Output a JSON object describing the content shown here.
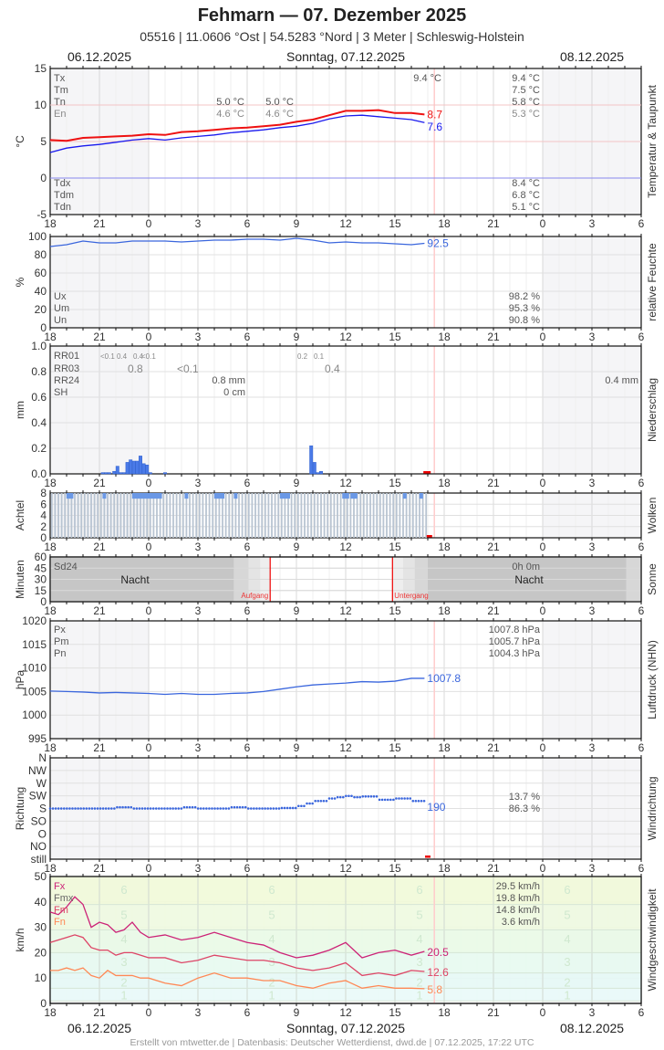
{
  "header": {
    "title": "Fehmarn  —  07. Dezember 2025",
    "subtitle": "05516  |  11.0606 °Ost  |  54.5283 °Nord  |  3 Meter  |  Schleswig-Holstein",
    "date_left": "06.12.2025",
    "date_center": "Sonntag, 07.12.2025",
    "date_right": "08.12.2025"
  },
  "footer": {
    "date_left": "06.12.2025",
    "date_center": "Sonntag, 07.12.2025",
    "date_right": "08.12.2025",
    "credit": "Erstellt von mtwetter.de | Datenbasis: Deutscher Wetterdienst, dwd.de | 07.12.2025, 17:22 UTC"
  },
  "x_axis_ticks": [
    "18",
    "21",
    "0",
    "3",
    "6",
    "9",
    "12",
    "15",
    "18",
    "21",
    "0",
    "3",
    "6"
  ],
  "chart_data": [
    {
      "type": "line",
      "title": "Temperatur & Taupunkt",
      "ylabel": "°C",
      "ylim": [
        -5,
        15
      ],
      "yticks": [
        "15",
        "10",
        "5",
        "0",
        "-5"
      ],
      "x_hours_from_18": [
        0,
        1,
        2,
        3,
        4,
        5,
        6,
        7,
        8,
        9,
        10,
        11,
        12,
        13,
        14,
        15,
        16,
        17,
        18,
        19,
        20,
        21,
        22,
        22.8
      ],
      "series": [
        {
          "name": "Temperatur",
          "color": "#ee1111",
          "values": [
            5.2,
            5.1,
            5.5,
            5.6,
            5.7,
            5.8,
            6.0,
            5.9,
            6.3,
            6.4,
            6.6,
            6.8,
            6.9,
            7.1,
            7.3,
            7.7,
            8.0,
            8.6,
            9.2,
            9.2,
            9.3,
            8.9,
            8.9,
            8.7
          ],
          "last_label": "8.7"
        },
        {
          "name": "Taupunkt",
          "color": "#1a1aee",
          "values": [
            3.5,
            4.1,
            4.4,
            4.6,
            4.9,
            5.2,
            5.4,
            5.2,
            5.5,
            5.7,
            5.9,
            6.2,
            6.4,
            6.6,
            6.9,
            7.1,
            7.5,
            8.1,
            8.5,
            8.6,
            8.4,
            8.2,
            8.0,
            7.6
          ],
          "last_label": "7.6"
        }
      ],
      "stats_left": [
        {
          "label": "Tx",
          "value": ""
        },
        {
          "label": "Tm",
          "value": ""
        },
        {
          "label": "Tn",
          "value": ""
        },
        {
          "label": "En",
          "value": ""
        }
      ],
      "annotations": [
        {
          "text": "5.0 °C",
          "row": "Tn",
          "x_hour": 12
        },
        {
          "text": "5.0 °C",
          "row": "Tn",
          "x_hour": 15
        },
        {
          "text": "4.6 °C",
          "row": "En",
          "x_hour": 12
        },
        {
          "text": "4.6 °C",
          "row": "En",
          "x_hour": 15
        },
        {
          "text": "9.4 °C",
          "row": "Tx",
          "x_hour": 24
        }
      ],
      "stats_right": {
        "Tx": "9.4 °C",
        "Tm": "7.5 °C",
        "Tn": "5.8 °C",
        "En": "5.3 °C"
      },
      "dew_stats": {
        "Tdx": "8.4 °C",
        "Tdm": "6.8 °C",
        "Tdn": "5.1 °C"
      }
    },
    {
      "type": "line",
      "title": "relative Feuchte",
      "ylabel": "%",
      "ylim": [
        0,
        100
      ],
      "yticks": [
        "100",
        "80",
        "60",
        "40",
        "20",
        "0"
      ],
      "x_hours_from_18": [
        0,
        1,
        2,
        3,
        4,
        5,
        6,
        7,
        8,
        9,
        10,
        11,
        12,
        13,
        14,
        15,
        16,
        17,
        18,
        19,
        20,
        21,
        22,
        22.8
      ],
      "series": [
        {
          "name": "Relative Feuchte",
          "color": "#3a66dd",
          "values": [
            89,
            91,
            95,
            93,
            93,
            95,
            95,
            95,
            94,
            95,
            96,
            96,
            97,
            97,
            96,
            98,
            96,
            93,
            94,
            93,
            93,
            92,
            91,
            92.5
          ],
          "last_label": "92.5"
        }
      ],
      "stats": {
        "Ux": "98.2 %",
        "Um": "95.3 %",
        "Un": "90.8 %"
      }
    },
    {
      "type": "bar",
      "title": "Niederschlag",
      "ylabel": "mm",
      "ylim": [
        0,
        1.0
      ],
      "yticks": [
        "1.0",
        "0.8",
        "0.6",
        "0.4",
        "0.2",
        "0.0"
      ],
      "bars": [
        {
          "x_hour": 3.2,
          "value": 0.01
        },
        {
          "x_hour": 3.4,
          "value": 0.01
        },
        {
          "x_hour": 3.6,
          "value": 0.01
        },
        {
          "x_hour": 3.9,
          "value": 0.02
        },
        {
          "x_hour": 4.1,
          "value": 0.06
        },
        {
          "x_hour": 4.3,
          "value": 0.01
        },
        {
          "x_hour": 4.5,
          "value": 0.01
        },
        {
          "x_hour": 4.7,
          "value": 0.09
        },
        {
          "x_hour": 4.9,
          "value": 0.11
        },
        {
          "x_hour": 5.1,
          "value": 0.1
        },
        {
          "x_hour": 5.3,
          "value": 0.1
        },
        {
          "x_hour": 5.5,
          "value": 0.14
        },
        {
          "x_hour": 5.7,
          "value": 0.08
        },
        {
          "x_hour": 5.9,
          "value": 0.07
        },
        {
          "x_hour": 6.1,
          "value": 0.01
        },
        {
          "x_hour": 7.0,
          "value": 0.01
        },
        {
          "x_hour": 15.9,
          "value": 0.22
        },
        {
          "x_hour": 16.1,
          "value": 0.09
        },
        {
          "x_hour": 16.3,
          "value": 0.01
        },
        {
          "x_hour": 16.5,
          "value": 0.02
        }
      ],
      "rr01": [
        {
          "text": "<0.1",
          "x_hour": 3.5
        },
        {
          "text": "0.4",
          "x_hour": 4.5
        },
        {
          "text": "0.4",
          "x_hour": 5.5
        },
        {
          "text": "<0.1",
          "x_hour": 6.0
        },
        {
          "text": "0.2",
          "x_hour": 15.5
        },
        {
          "text": "0.1",
          "x_hour": 16.5
        }
      ],
      "rr03": [
        {
          "text": "0.8",
          "x_hour": 5.5
        },
        {
          "text": "<0.1",
          "x_hour": 8.5
        },
        {
          "text": "0.4",
          "x_hour": 17.5
        }
      ],
      "stats_labels": [
        "RR01",
        "RR03",
        "RR24",
        "SH"
      ],
      "rr24": "0.8 mm",
      "sh": "0 cm",
      "rr24_right": "0.4 mm"
    },
    {
      "type": "bar",
      "title": "Wolken",
      "ylabel": "Achtel",
      "ylim": [
        0,
        8
      ],
      "yticks": [
        "8",
        "6",
        "4",
        "2",
        "0"
      ],
      "note": "Bewölkung 8/8 durchgehend bis ca. 17 Uhr, einzelne Werte 7/8",
      "seven_eighths_hours": [
        1.1,
        1.3,
        3.3,
        5.1,
        5.3,
        5.5,
        5.7,
        5.9,
        6.1,
        6.3,
        6.5,
        6.7,
        8.3,
        10.1,
        10.3,
        10.5,
        11.3,
        14.1,
        14.3,
        14.5,
        17.9,
        18.1,
        18.4,
        18.6,
        21.6,
        22.6
      ]
    },
    {
      "type": "area",
      "title": "Sonne",
      "ylabel": "Minuten",
      "ylim": [
        0,
        60
      ],
      "yticks": [
        "60",
        "45",
        "30",
        "15",
        "0"
      ],
      "sd24_label": "Sd24",
      "sd24_value": "0h 0m",
      "night_label": "Nacht",
      "sunrise_label": "Aufgang",
      "sunset_label": "Untergang",
      "sunrise_hour": 13.4,
      "sunset_hour": 20.85
    },
    {
      "type": "line",
      "title": "Luftdruck (NHN)",
      "ylabel": "hPa",
      "ylim": [
        995,
        1020
      ],
      "yticks": [
        "1020",
        "1015",
        "1010",
        "1005",
        "1000",
        "995"
      ],
      "x_hours_from_18": [
        0,
        1,
        2,
        3,
        4,
        5,
        6,
        7,
        8,
        9,
        10,
        11,
        12,
        13,
        14,
        15,
        16,
        17,
        18,
        19,
        20,
        21,
        22,
        22.8
      ],
      "series": [
        {
          "name": "Luftdruck",
          "color": "#3a66dd",
          "values": [
            1005.1,
            1005.0,
            1004.9,
            1004.7,
            1004.8,
            1004.7,
            1004.6,
            1004.4,
            1004.6,
            1004.4,
            1004.4,
            1004.6,
            1004.7,
            1005.0,
            1005.5,
            1006.0,
            1006.4,
            1006.6,
            1006.8,
            1007.1,
            1007.0,
            1007.2,
            1007.8,
            1007.8
          ],
          "last_label": "1007.8"
        }
      ],
      "stats": {
        "Px": "1007.8 hPa",
        "Pm": "1005.7 hPa",
        "Pn": "1004.3 hPa"
      }
    },
    {
      "type": "scatter",
      "title": "Windrichtung",
      "ylabel": "Richtung",
      "yticks": [
        "N",
        "NW",
        "W",
        "SW",
        "S",
        "SO",
        "O",
        "NO",
        "still"
      ],
      "series": [
        {
          "name": "Windrichtung",
          "color": "#3a66dd",
          "last_label": "190",
          "x_hours_from_18": [
            0,
            2,
            3,
            4,
            5,
            6,
            7,
            8,
            9,
            10,
            11,
            12,
            13,
            14,
            15,
            15.5,
            16,
            17,
            17.5,
            18,
            18.5,
            19,
            20,
            21,
            22,
            22.8
          ],
          "values": [
            180,
            180,
            180,
            185,
            180,
            180,
            180,
            185,
            180,
            180,
            185,
            180,
            180,
            182,
            190,
            200,
            210,
            220,
            225,
            230,
            225,
            228,
            215,
            220,
            210,
            190
          ]
        }
      ],
      "stats": [
        "13.7 %",
        "86.3 %"
      ]
    },
    {
      "type": "line",
      "title": "Windgeschwindigkeit",
      "ylabel": "km/h",
      "ylim": [
        0,
        50
      ],
      "yticks": [
        "50",
        "40",
        "30",
        "20",
        "10",
        "0"
      ],
      "beaufort_labels": [
        "6",
        "5",
        "4",
        "3",
        "2",
        "1"
      ],
      "x_hours_from_18": [
        0,
        0.5,
        1,
        1.5,
        2,
        2.5,
        3,
        3.5,
        4,
        4.5,
        5,
        5.5,
        6,
        7,
        8,
        9,
        10,
        11,
        12,
        13,
        14,
        15,
        16,
        17,
        18,
        19,
        20,
        21,
        22,
        22.8
      ],
      "series": [
        {
          "name": "Fx",
          "color": "#cc2277",
          "values": [
            36,
            35,
            38,
            42,
            39,
            30,
            32,
            31,
            28,
            29,
            32,
            28,
            26,
            27,
            25,
            26,
            28,
            26,
            24,
            23,
            20,
            18,
            19,
            21,
            24,
            18,
            20,
            21,
            19,
            20.5
          ],
          "last_label": "20.5"
        },
        {
          "name": "Fm",
          "color": "#dd4466",
          "values": [
            24,
            25,
            26,
            27,
            26,
            22,
            21,
            21,
            19,
            20,
            20,
            19,
            18,
            18,
            16,
            17,
            19,
            18,
            17,
            17,
            16,
            14,
            13,
            14,
            16,
            11,
            12,
            11,
            13,
            12.6
          ],
          "last_label": "12.6"
        },
        {
          "name": "Fn",
          "color": "#ff8855",
          "values": [
            13,
            13,
            14,
            13,
            14,
            11,
            10,
            13,
            11,
            11,
            11,
            10,
            10,
            8,
            7,
            10,
            12,
            10,
            10,
            9,
            9,
            7,
            6,
            8,
            9,
            6,
            7,
            6,
            6,
            5.8
          ],
          "last_label": "5.8"
        }
      ],
      "legend": [
        "Fx",
        "Fmx",
        "Fm",
        "Fn"
      ],
      "stats": {
        "Fx": "29.5 km/h",
        "Fmx": "19.8 km/h",
        "Fm": "14.8 km/h",
        "Fn": "3.6 km/h"
      }
    }
  ]
}
